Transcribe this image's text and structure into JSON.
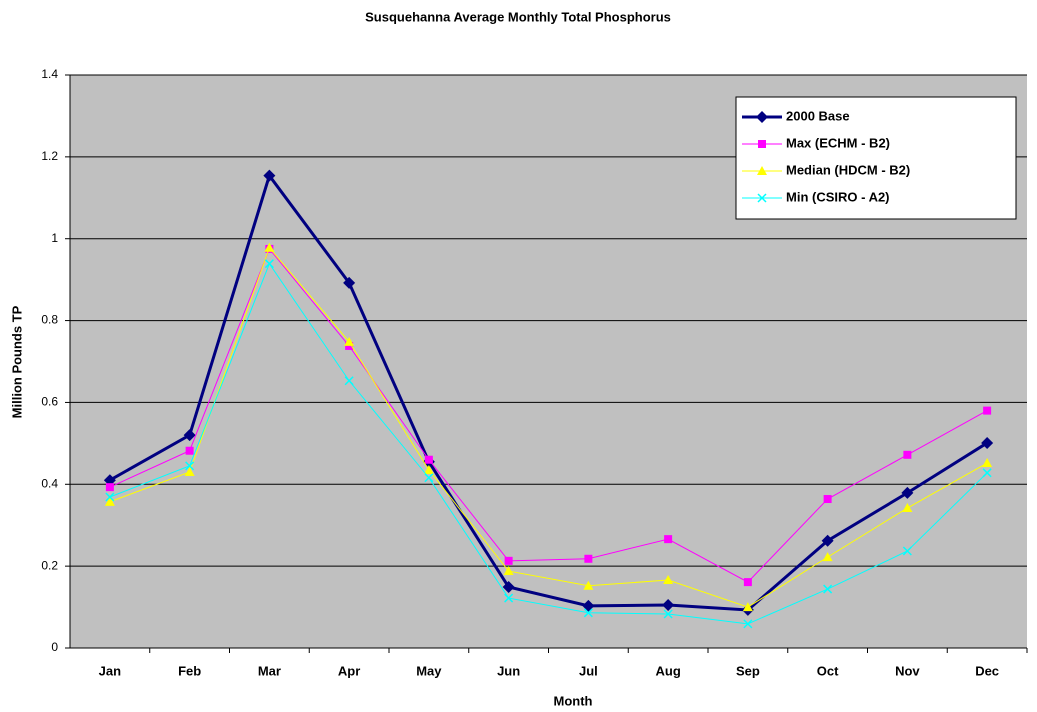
{
  "chart_data": {
    "type": "line",
    "title": "Susquehanna Average Monthly Total Phosphorus",
    "x_label": "Month",
    "y_label": "Million Pounds TP",
    "categories": [
      "Jan",
      "Feb",
      "Mar",
      "Apr",
      "May",
      "Jun",
      "Jul",
      "Aug",
      "Sep",
      "Oct",
      "Nov",
      "Dec"
    ],
    "series": [
      {
        "name": "2000 Base",
        "color": "#000080",
        "marker": "diamond",
        "line_width": 3,
        "values": [
          0.41,
          0.52,
          1.154,
          0.892,
          0.455,
          0.149,
          0.103,
          0.105,
          0.093,
          0.262,
          0.379,
          0.501
        ]
      },
      {
        "name": "Max (ECHM - B2)",
        "color": "#ff00ff",
        "marker": "square",
        "line_width": 1,
        "values": [
          0.393,
          0.482,
          0.975,
          0.738,
          0.46,
          0.213,
          0.218,
          0.266,
          0.161,
          0.364,
          0.472,
          0.58
        ]
      },
      {
        "name": "Median (HDCM - B2)",
        "color": "#ffff00",
        "marker": "triangle",
        "line_width": 1,
        "values": [
          0.357,
          0.43,
          0.978,
          0.748,
          0.435,
          0.188,
          0.152,
          0.166,
          0.1,
          0.222,
          0.342,
          0.452
        ]
      },
      {
        "name": "Min (CSIRO - A2)",
        "color": "#00ffff",
        "marker": "x",
        "line_width": 1,
        "values": [
          0.369,
          0.445,
          0.939,
          0.653,
          0.416,
          0.122,
          0.086,
          0.083,
          0.059,
          0.144,
          0.237,
          0.428
        ]
      }
    ],
    "ylim": [
      0,
      1.4
    ],
    "yticks": [
      0,
      0.2,
      0.4,
      0.6,
      0.8,
      1,
      1.2,
      1.4
    ],
    "grid": true,
    "legend": "upper right",
    "plot_background": "#c0c0c0"
  }
}
